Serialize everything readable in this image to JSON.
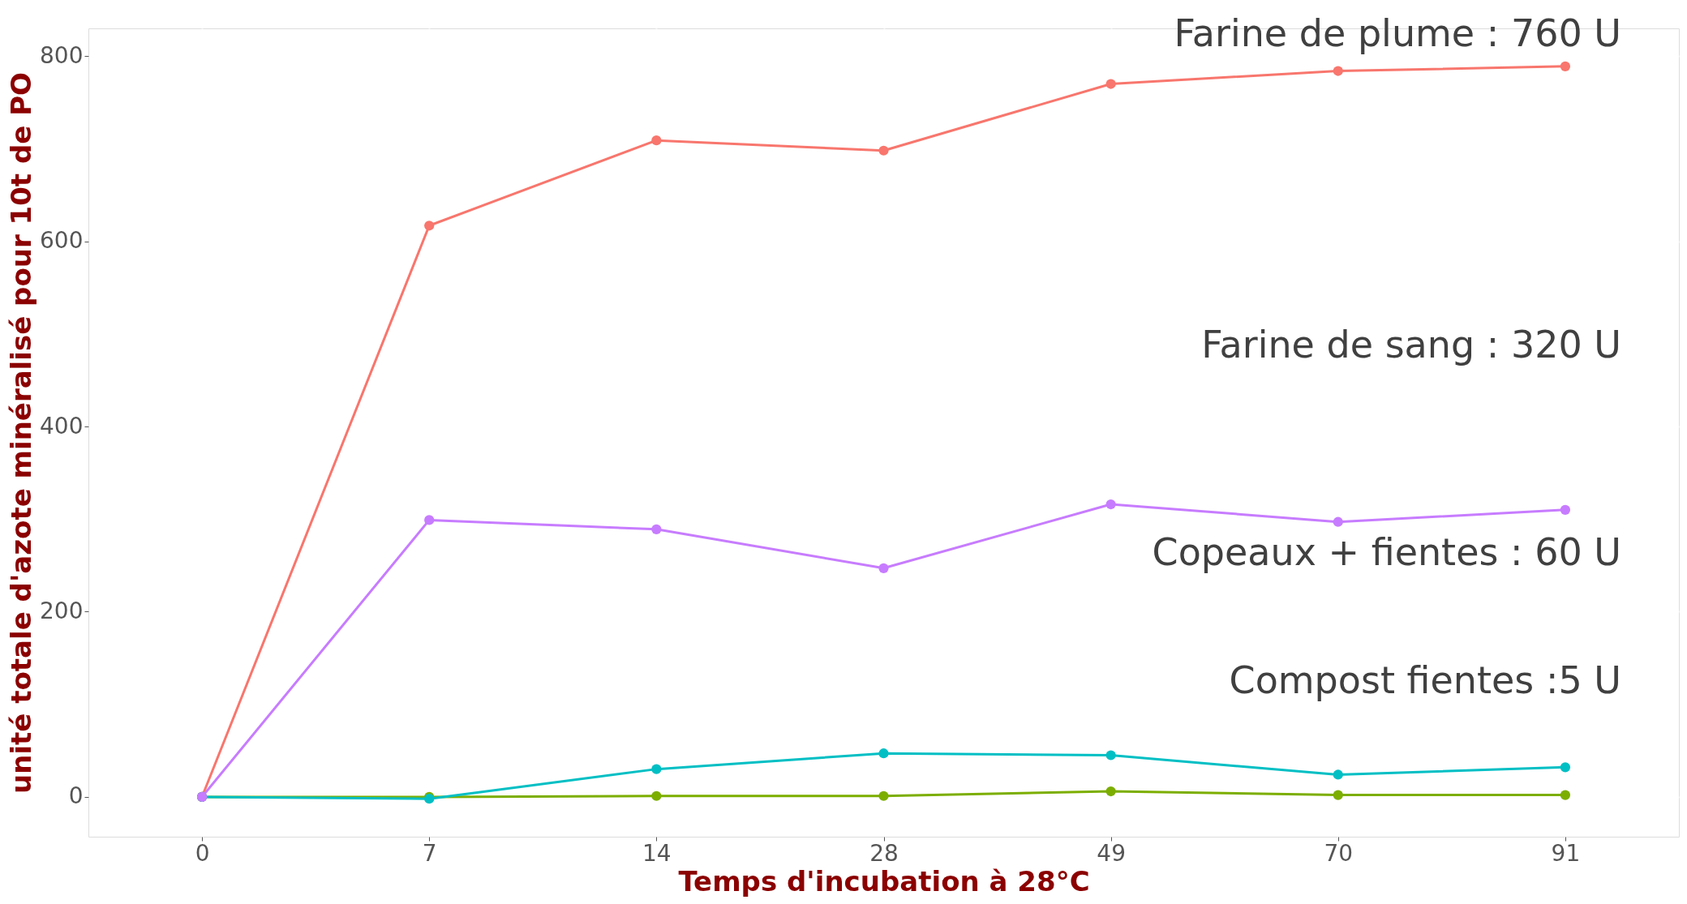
{
  "chart_data": {
    "type": "line",
    "xlabel": "Temps d'incubation à 28°C",
    "ylabel": "unité totale d'azote minéralisé pour 10t de PO",
    "categories": [
      "0",
      "7",
      "14",
      "28",
      "49",
      "70",
      "91"
    ],
    "series": [
      {
        "color": "#f8766d",
        "values": [
          0,
          617,
          709,
          698,
          770,
          784,
          789
        ]
      },
      {
        "color": "#7cae00",
        "values": [
          0,
          0,
          1,
          1,
          6,
          2,
          2
        ]
      },
      {
        "color": "#00bfc4",
        "values": [
          0,
          -2,
          30,
          47,
          45,
          24,
          32
        ]
      },
      {
        "color": "#c77cff",
        "values": [
          0,
          299,
          289,
          247,
          316,
          297,
          310
        ]
      }
    ],
    "ylim": [
      -43,
      830
    ],
    "yticks": [
      0,
      200,
      400,
      600,
      800
    ],
    "grid": true,
    "marker": "circle",
    "line_style": "solid",
    "annotations": [
      "Farine de plume : 760 U",
      "Farine de sang : 320 U",
      "Copeaux + fientes : 60 U",
      "Compost fientes :5 U"
    ]
  }
}
